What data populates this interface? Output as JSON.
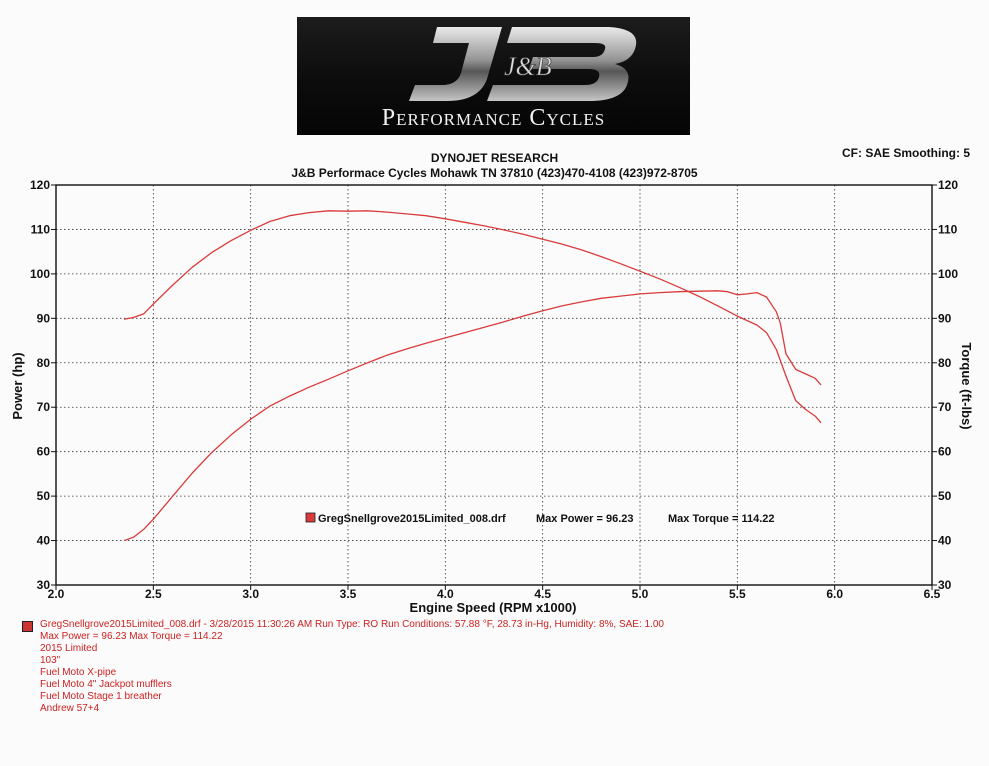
{
  "header": {
    "logo_initials": "J&B",
    "logo_text": "Performance Cycles",
    "title": "DYNOJET RESEARCH",
    "subtitle": "J&B Performace Cycles Mohawk TN 37810 (423)470-4108 (423)972-8705",
    "cf_info": "CF: SAE  Smoothing: 5"
  },
  "chart_data": {
    "type": "line",
    "xlabel": "Engine Speed (RPM x1000)",
    "ylabel": "Power (hp)",
    "y2label": "Torque (ft-lbs)",
    "xlim": [
      2.0,
      6.5
    ],
    "ylim": [
      30,
      120
    ],
    "y2lim": [
      30,
      120
    ],
    "x_ticks": [
      "2.0",
      "2.5",
      "3.0",
      "3.5",
      "4.0",
      "4.5",
      "5.0",
      "5.5",
      "6.0",
      "6.5"
    ],
    "y_ticks": [
      "30",
      "40",
      "50",
      "60",
      "70",
      "80",
      "90",
      "100",
      "110",
      "120"
    ],
    "grid": true,
    "series_color": "#d93b3b",
    "legend": {
      "file": "GregSnellgrove2015Limited_008.drf",
      "max_power_label": "Max Power = 96.23",
      "max_torque_label": "Max Torque = 114.22"
    },
    "series": [
      {
        "name": "Power (hp)",
        "x": [
          2.35,
          2.4,
          2.45,
          2.5,
          2.6,
          2.7,
          2.8,
          2.9,
          3.0,
          3.1,
          3.2,
          3.3,
          3.4,
          3.5,
          3.6,
          3.7,
          3.8,
          3.9,
          4.0,
          4.1,
          4.2,
          4.3,
          4.4,
          4.5,
          4.6,
          4.7,
          4.8,
          4.9,
          5.0,
          5.1,
          5.2,
          5.3,
          5.4,
          5.45,
          5.5,
          5.55,
          5.6,
          5.65,
          5.7,
          5.72,
          5.75,
          5.8,
          5.85,
          5.9,
          5.93
        ],
        "values": [
          40.0,
          40.8,
          42.5,
          44.8,
          50.0,
          55.2,
          59.8,
          63.8,
          67.3,
          70.3,
          72.5,
          74.5,
          76.3,
          78.2,
          80.0,
          81.7,
          83.1,
          84.4,
          85.6,
          86.8,
          88.0,
          89.2,
          90.5,
          91.7,
          92.8,
          93.7,
          94.5,
          95.0,
          95.5,
          95.8,
          96.0,
          96.1,
          96.2,
          96.0,
          95.3,
          95.5,
          95.8,
          94.8,
          91.5,
          89.0,
          82.0,
          78.5,
          77.5,
          76.5,
          75.0
        ]
      },
      {
        "name": "Torque (ft-lbs)",
        "x": [
          2.35,
          2.4,
          2.45,
          2.5,
          2.6,
          2.7,
          2.8,
          2.9,
          3.0,
          3.1,
          3.2,
          3.3,
          3.4,
          3.5,
          3.6,
          3.7,
          3.8,
          3.9,
          4.0,
          4.1,
          4.2,
          4.3,
          4.4,
          4.5,
          4.6,
          4.7,
          4.8,
          4.9,
          5.0,
          5.1,
          5.2,
          5.3,
          5.4,
          5.5,
          5.6,
          5.65,
          5.7,
          5.75,
          5.8,
          5.85,
          5.9,
          5.93
        ],
        "values": [
          89.8,
          90.2,
          91.0,
          93.2,
          97.5,
          101.5,
          104.8,
          107.5,
          109.8,
          111.8,
          113.1,
          113.8,
          114.2,
          114.1,
          114.2,
          113.9,
          113.5,
          113.1,
          112.4,
          111.6,
          110.8,
          109.9,
          108.9,
          107.8,
          106.7,
          105.4,
          103.9,
          102.3,
          100.6,
          98.9,
          97.0,
          95.0,
          92.8,
          90.5,
          88.5,
          86.8,
          83.0,
          77.0,
          71.5,
          69.5,
          68.0,
          66.5
        ]
      }
    ]
  },
  "notes": {
    "line1": "GregSnellgrove2015Limited_008.drf - 3/28/2015 11:30:26 AM  Run Type: RO  Run Conditions: 57.88 °F, 28.73 in-Hg,  Humidity:  8%, SAE: 1.00",
    "line2": "Max Power = 96.23  Max Torque = 114.22",
    "line3": "2015 Limited",
    "line4": "103\"",
    "line5": "Fuel Moto X-pipe",
    "line6": "Fuel Moto 4\" Jackpot mufflers",
    "line7": "Fuel Moto Stage 1 breather",
    "line8": "Andrew 57+4"
  }
}
